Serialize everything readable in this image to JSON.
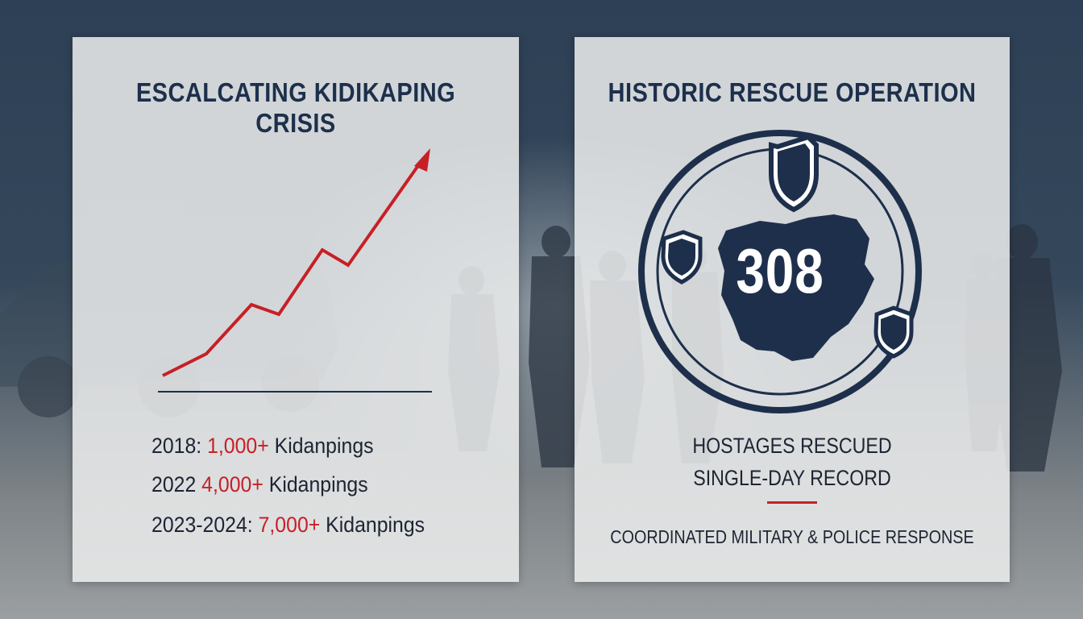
{
  "left_panel": {
    "title": "ESCALCATING KIDIKAPING CRISIS",
    "stats": [
      {
        "label": "2018: ",
        "value": "1,000+",
        "suffix": " Kidanpings"
      },
      {
        "label": "2022 ",
        "value": "4,000+",
        "suffix": " Kidanpings"
      },
      {
        "label": "2023-2024: ",
        "value": "7,000+",
        "suffix": " Kidanpings"
      }
    ]
  },
  "right_panel": {
    "title": "HISTORIC RESCUE OPERATION",
    "number": "308",
    "caption_line1": "HOSTAGES RESCUED",
    "caption_line2": "SINGLE-DAY RECORD",
    "footer": "COORDINATED MILITARY & POLICE RESPONSE"
  },
  "colors": {
    "navy": "#1d2f4b",
    "red": "#c62026",
    "background": "#2b3d50"
  },
  "icons": [
    "trend-arrow-icon",
    "shield-icon",
    "nigeria-map-icon"
  ]
}
